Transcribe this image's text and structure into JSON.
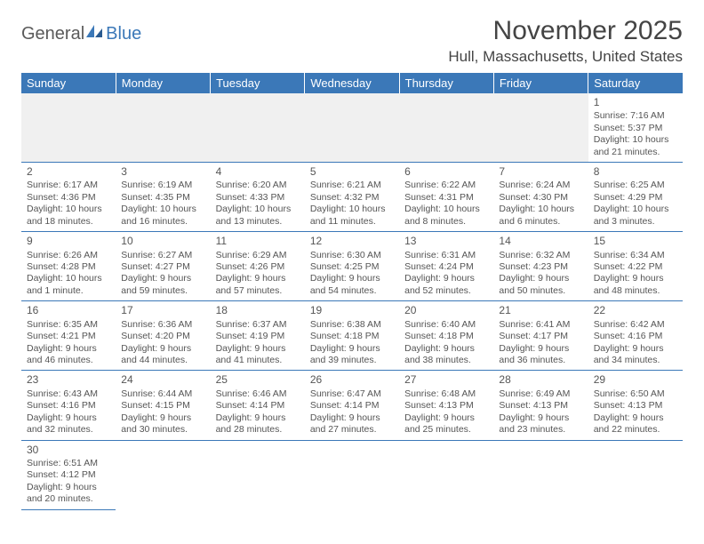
{
  "logo": {
    "text1": "General",
    "text2": "Blue"
  },
  "title": "November 2025",
  "location": "Hull, Massachusetts, United States",
  "colors": {
    "header_bg": "#3b78b8",
    "header_text": "#ffffff",
    "border": "#3b78b8",
    "empty_bg": "#f0f0f0",
    "text": "#555555",
    "title_color": "#444444"
  },
  "weekdays": [
    "Sunday",
    "Monday",
    "Tuesday",
    "Wednesday",
    "Thursday",
    "Friday",
    "Saturday"
  ],
  "weeks": [
    [
      null,
      null,
      null,
      null,
      null,
      null,
      {
        "d": "1",
        "sr": "7:16 AM",
        "ss": "5:37 PM",
        "dl1": "10 hours",
        "dl2": "and 21 minutes."
      }
    ],
    [
      {
        "d": "2",
        "sr": "6:17 AM",
        "ss": "4:36 PM",
        "dl1": "10 hours",
        "dl2": "and 18 minutes."
      },
      {
        "d": "3",
        "sr": "6:19 AM",
        "ss": "4:35 PM",
        "dl1": "10 hours",
        "dl2": "and 16 minutes."
      },
      {
        "d": "4",
        "sr": "6:20 AM",
        "ss": "4:33 PM",
        "dl1": "10 hours",
        "dl2": "and 13 minutes."
      },
      {
        "d": "5",
        "sr": "6:21 AM",
        "ss": "4:32 PM",
        "dl1": "10 hours",
        "dl2": "and 11 minutes."
      },
      {
        "d": "6",
        "sr": "6:22 AM",
        "ss": "4:31 PM",
        "dl1": "10 hours",
        "dl2": "and 8 minutes."
      },
      {
        "d": "7",
        "sr": "6:24 AM",
        "ss": "4:30 PM",
        "dl1": "10 hours",
        "dl2": "and 6 minutes."
      },
      {
        "d": "8",
        "sr": "6:25 AM",
        "ss": "4:29 PM",
        "dl1": "10 hours",
        "dl2": "and 3 minutes."
      }
    ],
    [
      {
        "d": "9",
        "sr": "6:26 AM",
        "ss": "4:28 PM",
        "dl1": "10 hours",
        "dl2": "and 1 minute."
      },
      {
        "d": "10",
        "sr": "6:27 AM",
        "ss": "4:27 PM",
        "dl1": "9 hours",
        "dl2": "and 59 minutes."
      },
      {
        "d": "11",
        "sr": "6:29 AM",
        "ss": "4:26 PM",
        "dl1": "9 hours",
        "dl2": "and 57 minutes."
      },
      {
        "d": "12",
        "sr": "6:30 AM",
        "ss": "4:25 PM",
        "dl1": "9 hours",
        "dl2": "and 54 minutes."
      },
      {
        "d": "13",
        "sr": "6:31 AM",
        "ss": "4:24 PM",
        "dl1": "9 hours",
        "dl2": "and 52 minutes."
      },
      {
        "d": "14",
        "sr": "6:32 AM",
        "ss": "4:23 PM",
        "dl1": "9 hours",
        "dl2": "and 50 minutes."
      },
      {
        "d": "15",
        "sr": "6:34 AM",
        "ss": "4:22 PM",
        "dl1": "9 hours",
        "dl2": "and 48 minutes."
      }
    ],
    [
      {
        "d": "16",
        "sr": "6:35 AM",
        "ss": "4:21 PM",
        "dl1": "9 hours",
        "dl2": "and 46 minutes."
      },
      {
        "d": "17",
        "sr": "6:36 AM",
        "ss": "4:20 PM",
        "dl1": "9 hours",
        "dl2": "and 44 minutes."
      },
      {
        "d": "18",
        "sr": "6:37 AM",
        "ss": "4:19 PM",
        "dl1": "9 hours",
        "dl2": "and 41 minutes."
      },
      {
        "d": "19",
        "sr": "6:38 AM",
        "ss": "4:18 PM",
        "dl1": "9 hours",
        "dl2": "and 39 minutes."
      },
      {
        "d": "20",
        "sr": "6:40 AM",
        "ss": "4:18 PM",
        "dl1": "9 hours",
        "dl2": "and 38 minutes."
      },
      {
        "d": "21",
        "sr": "6:41 AM",
        "ss": "4:17 PM",
        "dl1": "9 hours",
        "dl2": "and 36 minutes."
      },
      {
        "d": "22",
        "sr": "6:42 AM",
        "ss": "4:16 PM",
        "dl1": "9 hours",
        "dl2": "and 34 minutes."
      }
    ],
    [
      {
        "d": "23",
        "sr": "6:43 AM",
        "ss": "4:16 PM",
        "dl1": "9 hours",
        "dl2": "and 32 minutes."
      },
      {
        "d": "24",
        "sr": "6:44 AM",
        "ss": "4:15 PM",
        "dl1": "9 hours",
        "dl2": "and 30 minutes."
      },
      {
        "d": "25",
        "sr": "6:46 AM",
        "ss": "4:14 PM",
        "dl1": "9 hours",
        "dl2": "and 28 minutes."
      },
      {
        "d": "26",
        "sr": "6:47 AM",
        "ss": "4:14 PM",
        "dl1": "9 hours",
        "dl2": "and 27 minutes."
      },
      {
        "d": "27",
        "sr": "6:48 AM",
        "ss": "4:13 PM",
        "dl1": "9 hours",
        "dl2": "and 25 minutes."
      },
      {
        "d": "28",
        "sr": "6:49 AM",
        "ss": "4:13 PM",
        "dl1": "9 hours",
        "dl2": "and 23 minutes."
      },
      {
        "d": "29",
        "sr": "6:50 AM",
        "ss": "4:13 PM",
        "dl1": "9 hours",
        "dl2": "and 22 minutes."
      }
    ],
    [
      {
        "d": "30",
        "sr": "6:51 AM",
        "ss": "4:12 PM",
        "dl1": "9 hours",
        "dl2": "and 20 minutes."
      },
      null,
      null,
      null,
      null,
      null,
      null
    ]
  ],
  "labels": {
    "sunrise": "Sunrise:",
    "sunset": "Sunset:",
    "daylight": "Daylight:"
  }
}
